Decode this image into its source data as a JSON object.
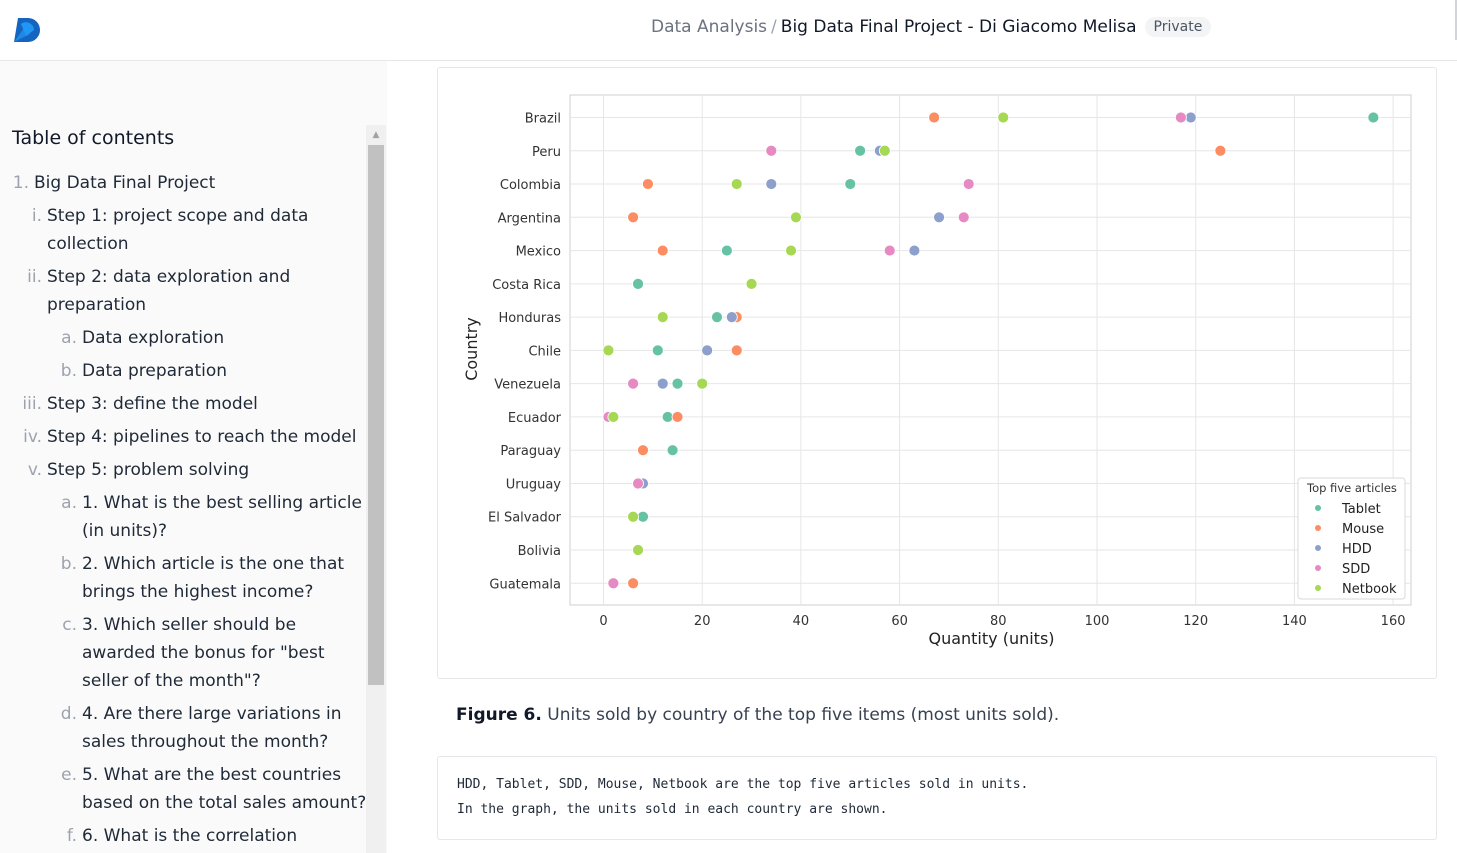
{
  "header": {
    "breadcrumb_parent": "Data Analysis",
    "breadcrumb_sep": "/",
    "notebook_title": "Big Data Final Project - Di Giacomo Melisa",
    "visibility_badge": "Private",
    "logo_icon": "deepnote-logo-icon"
  },
  "sidebar": {
    "toc_title": "Table of contents",
    "items": [
      {
        "num": "1.",
        "text": [
          "Big Data Final Project"
        ],
        "level": 0
      },
      {
        "num": "i.",
        "text": [
          "Step 1: project scope and data",
          "collection"
        ],
        "level": 1
      },
      {
        "num": "ii.",
        "text": [
          "Step 2: data exploration and",
          "preparation"
        ],
        "level": 1
      },
      {
        "num": "a.",
        "text": [
          "Data exploration"
        ],
        "level": 2
      },
      {
        "num": "b.",
        "text": [
          "Data preparation"
        ],
        "level": 2
      },
      {
        "num": "iii.",
        "text": [
          "Step 3: define the model"
        ],
        "level": 1
      },
      {
        "num": "iv.",
        "text": [
          "Step 4: pipelines to reach the model"
        ],
        "level": 1
      },
      {
        "num": "v.",
        "text": [
          "Step 5: problem solving"
        ],
        "level": 1
      },
      {
        "num": "a.",
        "text": [
          "1. What is the best selling article",
          "(in units)?"
        ],
        "level": 2
      },
      {
        "num": "b.",
        "text": [
          "2. Which article is the one that",
          "brings the highest income?"
        ],
        "level": 2
      },
      {
        "num": "c.",
        "text": [
          "3. Which seller should be",
          "awarded the bonus for \"best",
          "seller of the month\"?"
        ],
        "level": 2
      },
      {
        "num": "d.",
        "text": [
          "4. Are there large variations in",
          "sales throughout the month?"
        ],
        "level": 2
      },
      {
        "num": "e.",
        "text": [
          "5. What are the best countries",
          "based on the total sales amount?"
        ],
        "level": 2
      },
      {
        "num": "f.",
        "text": [
          "6. What is the correlation"
        ],
        "level": 2
      }
    ]
  },
  "figure": {
    "caption_label": "Figure 6.",
    "caption_text": " Units sold by country of the top five items (most units sold)."
  },
  "code_output": {
    "lines": [
      "HDD, Tablet, SDD, Mouse, Netbook are the top five articles sold in units.",
      "In the graph, the units sold in each country are shown."
    ]
  },
  "chart_data": {
    "type": "scatter",
    "title": "",
    "xlabel": "Quantity (units)",
    "ylabel": "Country",
    "xlim": [
      -7,
      164
    ],
    "xticks": [
      0,
      20,
      40,
      60,
      80,
      100,
      120,
      140,
      160
    ],
    "grid": true,
    "legend_title": "Top five articles",
    "legend_position": "lower-right",
    "categories": [
      "Brazil",
      "Peru",
      "Colombia",
      "Argentina",
      "Mexico",
      "Costa Rica",
      "Honduras",
      "Chile",
      "Venezuela",
      "Ecuador",
      "Paraguay",
      "Uruguay",
      "El Salvador",
      "Bolivia",
      "Guatemala"
    ],
    "series": [
      {
        "name": "Tablet",
        "color": "#66c2a5",
        "values": [
          156,
          52,
          50,
          null,
          25,
          7,
          23,
          11,
          15,
          13,
          14,
          null,
          8,
          null,
          null
        ]
      },
      {
        "name": "Mouse",
        "color": "#fc8d62",
        "values": [
          67,
          125,
          9,
          6,
          12,
          null,
          27,
          27,
          null,
          15,
          8,
          null,
          null,
          null,
          6
        ]
      },
      {
        "name": "HDD",
        "color": "#8da0cb",
        "values": [
          119,
          56,
          34,
          68,
          63,
          null,
          26,
          21,
          12,
          null,
          null,
          8,
          null,
          null,
          null
        ]
      },
      {
        "name": "SDD",
        "color": "#e78ac3",
        "values": [
          117,
          34,
          74,
          73,
          58,
          null,
          null,
          null,
          6,
          1,
          null,
          7,
          null,
          null,
          2
        ]
      },
      {
        "name": "Netbook",
        "color": "#a6d854",
        "values": [
          81,
          57,
          27,
          39,
          38,
          30,
          12,
          1,
          20,
          2,
          null,
          null,
          6,
          7,
          null
        ]
      }
    ]
  }
}
